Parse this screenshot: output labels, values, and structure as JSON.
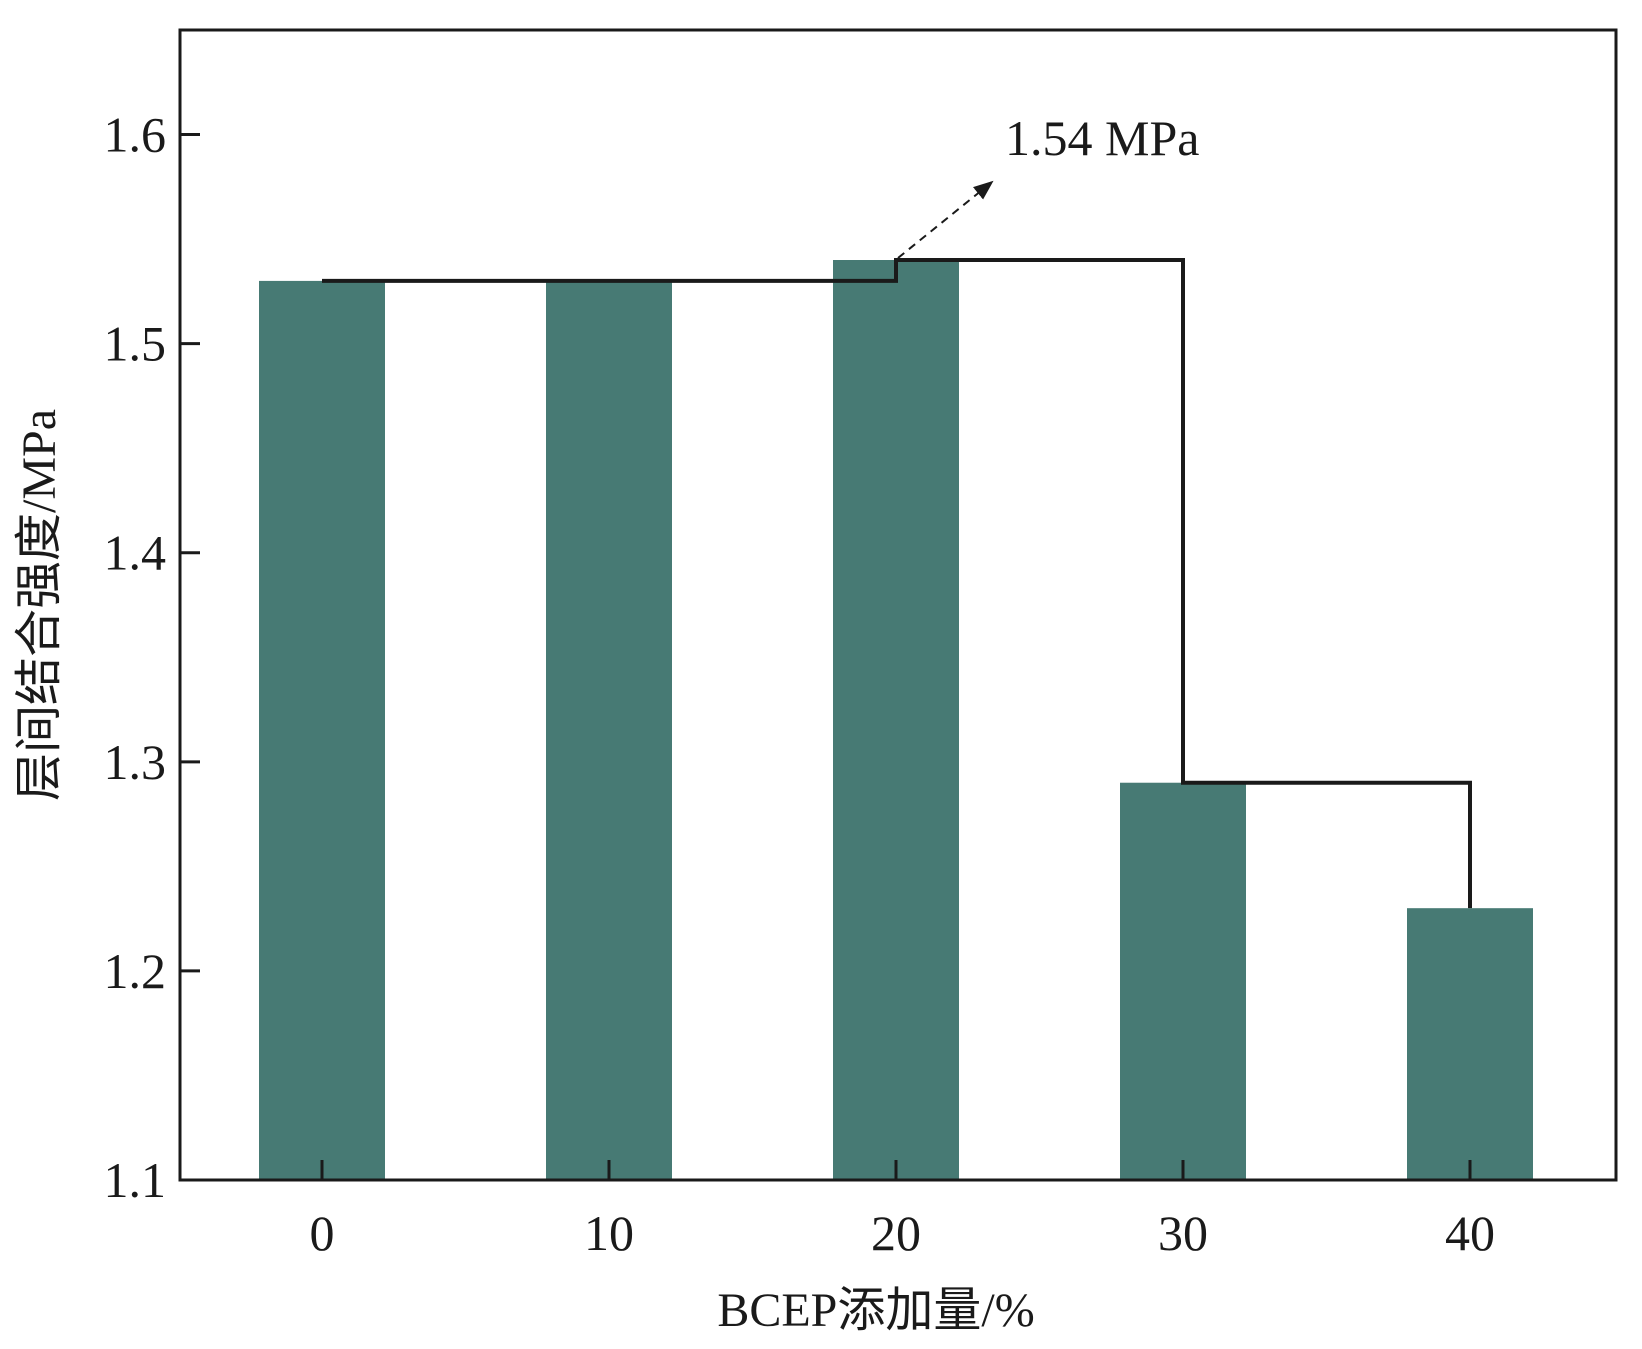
{
  "chart_data": {
    "type": "bar",
    "title": "",
    "categories": [
      "0",
      "10",
      "20",
      "30",
      "40"
    ],
    "values": [
      1.53,
      1.53,
      1.54,
      1.29,
      1.23
    ],
    "xlabel": "BCEP添加量/%",
    "ylabel": "层间结合强度/MPa",
    "ylim": [
      1.1,
      1.65
    ],
    "yticks": [
      "1.1",
      "1.2",
      "1.3",
      "1.4",
      "1.5",
      "1.6"
    ],
    "grid": false,
    "legend": "none",
    "annotations": [
      {
        "text": "1.54 MPa",
        "target_category": "20",
        "target_value": 1.54
      }
    ],
    "step_line": {
      "description_values": [
        1.53,
        1.53,
        1.54,
        1.29,
        1.23
      ]
    }
  },
  "colors": {
    "bar": "#477a74",
    "axis": "#1a1a1a",
    "line": "#1a1a1a"
  }
}
